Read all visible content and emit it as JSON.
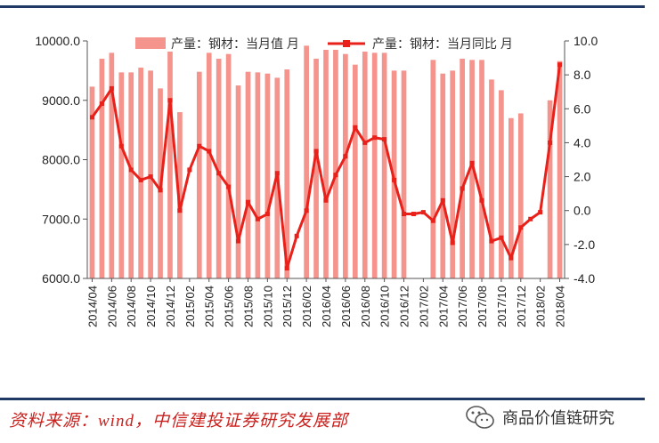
{
  "chart_data": {
    "type": "bar+line",
    "categories": [
      "2014/04",
      "2014/05",
      "2014/06",
      "2014/07",
      "2014/08",
      "2014/09",
      "2014/10",
      "2014/11",
      "2014/12",
      "2015/01",
      "2015/02",
      "2015/03",
      "2015/04",
      "2015/05",
      "2015/06",
      "2015/07",
      "2015/08",
      "2015/09",
      "2015/10",
      "2015/11",
      "2015/12",
      "2016/01",
      "2016/02",
      "2016/03",
      "2016/04",
      "2016/05",
      "2016/06",
      "2016/07",
      "2016/08",
      "2016/09",
      "2016/10",
      "2016/11",
      "2016/12",
      "2017/01",
      "2017/02",
      "2017/03",
      "2017/04",
      "2017/05",
      "2017/06",
      "2017/07",
      "2017/08",
      "2017/09",
      "2017/10",
      "2017/11",
      "2017/12",
      "2018/01",
      "2018/02",
      "2018/03",
      "2018/04"
    ],
    "x_tick_labels": [
      "2014/04",
      "2014/06",
      "2014/08",
      "2014/10",
      "2014/12",
      "2015/02",
      "2015/04",
      "2015/06",
      "2015/08",
      "2015/10",
      "2015/12",
      "2016/02",
      "2016/04",
      "2016/06",
      "2016/08",
      "2016/10",
      "2016/12",
      "2017/02",
      "2017/04",
      "2017/06",
      "2017/08",
      "2017/10",
      "2017/12",
      "2018/02",
      "2018/04"
    ],
    "series": [
      {
        "name": "产量：钢材：当月值  月",
        "axis": "left",
        "type": "bar",
        "color": "#f4948d",
        "values": [
          9230,
          9700,
          9800,
          9470,
          9470,
          9550,
          9500,
          9200,
          9820,
          8800,
          null,
          9480,
          9800,
          9700,
          9780,
          9250,
          9480,
          9470,
          9450,
          9380,
          9520,
          null,
          9920,
          9700,
          9850,
          9850,
          9780,
          9600,
          9820,
          9800,
          9800,
          9500,
          9500,
          null,
          null,
          9680,
          9450,
          9500,
          9700,
          9680,
          9680,
          9350,
          9170,
          8700,
          8780,
          null,
          null,
          9000,
          9660
        ]
      },
      {
        "name": "产量：钢材：当月同比  月",
        "axis": "right",
        "type": "line",
        "color": "#e8211b",
        "values": [
          5.5,
          6.3,
          7.2,
          3.8,
          2.4,
          1.8,
          2.0,
          1.2,
          6.5,
          0.0,
          2.4,
          3.8,
          3.5,
          2.2,
          1.4,
          -1.8,
          0.5,
          -0.5,
          -0.2,
          2.2,
          -3.4,
          -1.5,
          0.0,
          3.5,
          0.6,
          2.1,
          3.2,
          4.9,
          4.0,
          4.3,
          4.2,
          1.8,
          -0.2,
          -0.2,
          -0.1,
          -0.6,
          0.6,
          -1.9,
          1.3,
          2.8,
          0.6,
          -1.8,
          -1.6,
          -2.8,
          -1.0,
          -0.5,
          -0.1,
          4.0,
          8.6
        ]
      }
    ],
    "y_left": {
      "min": 6000,
      "max": 10000,
      "ticks": [
        "6000.0",
        "7000.0",
        "8000.0",
        "9000.0",
        "10000.0"
      ]
    },
    "y_right": {
      "min": -4,
      "max": 10,
      "ticks": [
        "-4.0",
        "-2.0",
        "0.0",
        "2.0",
        "4.0",
        "6.0",
        "8.0",
        "10.0"
      ]
    },
    "legend_position": "top",
    "grid": false
  },
  "footer": {
    "source": "资料来源：wind，中信建投证券研究发展部",
    "watermark": "商品价值链研究"
  }
}
